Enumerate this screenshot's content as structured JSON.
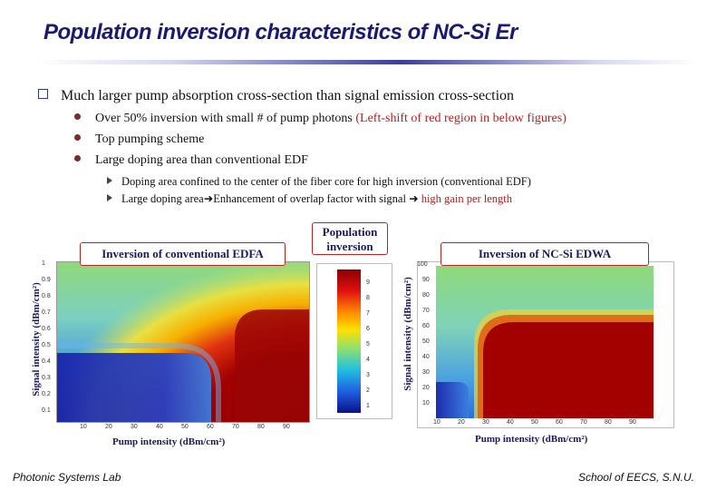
{
  "slide": {
    "title": "Population inversion characteristics of NC-Si Er",
    "main_point": "Much larger pump absorption cross-section than signal emission cross-section",
    "sub_points": {
      "p1_main": "Over 50% inversion with small # of pump photons",
      "p1_red": "(Left-shift of red region in below figures)",
      "p2": "Top pumping scheme",
      "p3": "Large doping area than conventional EDF"
    },
    "sub_sub_points": {
      "s1": "Doping area confined to the center of the fiber core for high inversion (conventional EDF)",
      "s2_a": "Large doping area",
      "s2_b": "Enhancement of overlap factor with signal",
      "s2_c": "high gain per length"
    },
    "footer_left": "Photonic Systems Lab",
    "footer_right": "School of EECS, S.N.U."
  },
  "figure": {
    "left_title": "Inversion of conventional EDFA",
    "right_title": "Inversion of NC-Si EDWA",
    "colorbar_title": "Population inversion",
    "ylabel": "Signal intensity (dBm/cm²)",
    "xlabel": "Pump intensity (dBm/cm²)",
    "colorbar_ticks": [
      "1",
      "2",
      "3",
      "4",
      "5",
      "6",
      "7",
      "8",
      "9"
    ],
    "right_yticks": [
      "100",
      "90",
      "80",
      "70",
      "60",
      "50",
      "40",
      "30",
      "20",
      "10"
    ],
    "right_xticks": [
      "10",
      "20",
      "30",
      "40",
      "50",
      "60",
      "70",
      "80",
      "90"
    ],
    "left_yticks": [
      "1",
      "0.9",
      "0.8",
      "0.7",
      "0.6",
      "0.5",
      "0.4",
      "0.3",
      "0.2",
      "0.1"
    ],
    "left_xticks": [
      "10",
      "20",
      "30",
      "40",
      "50",
      "60",
      "70",
      "80",
      "90"
    ],
    "colors": {
      "title": "#1a1a6e",
      "accent_red": "#b81c1c"
    }
  }
}
